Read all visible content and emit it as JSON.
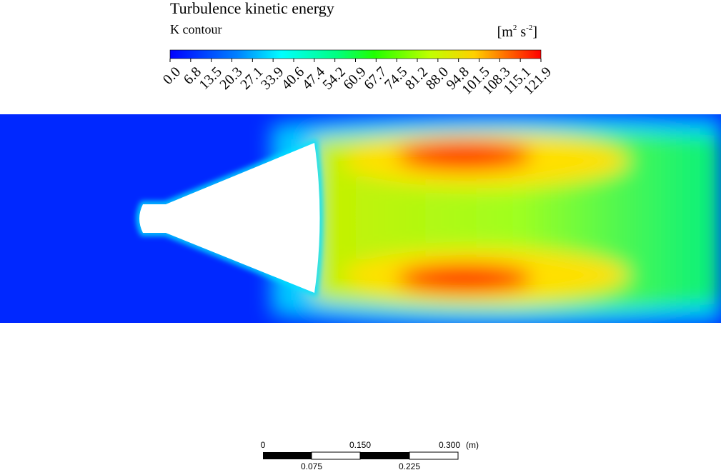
{
  "legend": {
    "title": "Turbulence kinetic energy",
    "subtitle": "K contour",
    "unit": {
      "base1": "m",
      "exp1": "2",
      "base2": "s",
      "exp2": "-2"
    },
    "ticks": [
      "0.0",
      "6.8",
      "13.5",
      "20.3",
      "27.1",
      "33.9",
      "40.6",
      "47.4",
      "54.2",
      "60.9",
      "67.7",
      "74.5",
      "81.2",
      "88.0",
      "94.8",
      "101.5",
      "108.3",
      "115.1",
      "121.9"
    ]
  },
  "scale_bar": {
    "top_labels": [
      "0",
      "0.150",
      "0.300"
    ],
    "unit": "(m)",
    "bottom_labels": [
      "0.075",
      "0.225"
    ]
  }
}
